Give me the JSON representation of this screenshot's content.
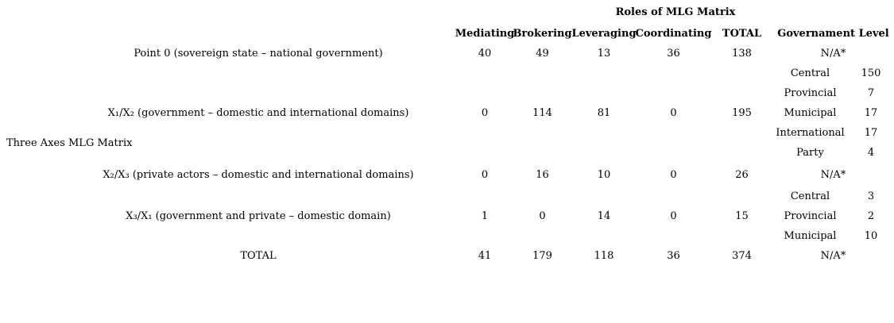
{
  "chart_data": {
    "type": "table",
    "title": "Roles of MLG Matrix",
    "row_axis_label": "Three Axes MLG Matrix",
    "columns": [
      "Mediating",
      "Brokering",
      "Leveraging",
      "Coordinating",
      "TOTAL",
      "Governament Level"
    ],
    "rows": [
      {
        "label": "Point 0 (sovereign state – national government)",
        "values": [
          40,
          49,
          13,
          36,
          138
        ],
        "government_level": "N/A*"
      },
      {
        "label": "X₁/X₂ (government – domestic and international domains)",
        "values": [
          0,
          114,
          81,
          0,
          195
        ],
        "government_level": [
          {
            "level": "Central",
            "count": 150
          },
          {
            "level": "Provincial",
            "count": 7
          },
          {
            "level": "Municipal",
            "count": 17
          },
          {
            "level": "International",
            "count": 17
          },
          {
            "level": "Party",
            "count": 4
          }
        ]
      },
      {
        "label": "X₂/X₃ (private actors – domestic and international domains)",
        "values": [
          0,
          16,
          10,
          0,
          26
        ],
        "government_level": "N/A*"
      },
      {
        "label": "X₃/X₁ (government and private – domestic domain)",
        "values": [
          1,
          0,
          14,
          0,
          15
        ],
        "government_level": [
          {
            "level": "Central",
            "count": 3
          },
          {
            "level": "Provincial",
            "count": 2
          },
          {
            "level": "Municipal",
            "count": 10
          }
        ]
      },
      {
        "label": "TOTAL",
        "values": [
          41,
          179,
          118,
          36,
          374
        ],
        "government_level": "N/A*"
      }
    ],
    "text_color": "#000000",
    "background_color": "#ffffff",
    "grid": "off",
    "borders": "none"
  }
}
